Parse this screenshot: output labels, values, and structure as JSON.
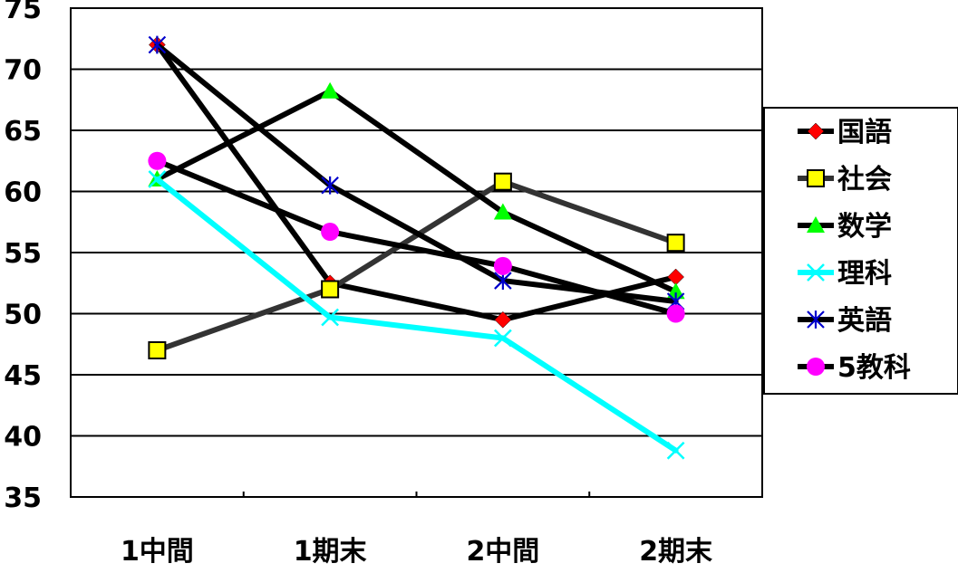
{
  "chart_data": {
    "type": "line",
    "categories": [
      "1中間",
      "1期末",
      "2中間",
      "2期末"
    ],
    "ylim": [
      35,
      75
    ],
    "yticks": [
      75,
      70,
      65,
      60,
      55,
      50,
      45,
      40,
      35
    ],
    "grid": true,
    "legend_position": "right",
    "series": [
      {
        "name": "国語",
        "values": [
          72.0,
          52.5,
          49.5,
          53.0
        ],
        "color": "#000000",
        "marker": "diamond",
        "marker_color": "#ff0000"
      },
      {
        "name": "社会",
        "values": [
          47.0,
          52.0,
          60.8,
          55.8
        ],
        "color": "#333333",
        "marker": "square",
        "marker_color": "#ffff00"
      },
      {
        "name": "数学",
        "values": [
          61.0,
          68.2,
          58.3,
          51.8
        ],
        "color": "#000000",
        "marker": "triangle",
        "marker_color": "#00ff00"
      },
      {
        "name": "理科",
        "values": [
          61.0,
          49.7,
          48.0,
          38.8
        ],
        "color": "#00ffff",
        "marker": "x",
        "marker_color": "#00ffff"
      },
      {
        "name": "英語",
        "values": [
          72.0,
          60.5,
          52.7,
          51.0
        ],
        "color": "#000000",
        "marker": "star",
        "marker_color": "#0000cc"
      },
      {
        "name": "5教科",
        "values": [
          62.5,
          56.7,
          53.9,
          50.0
        ],
        "color": "#000000",
        "marker": "circle",
        "marker_color": "#ff00ff"
      }
    ]
  }
}
